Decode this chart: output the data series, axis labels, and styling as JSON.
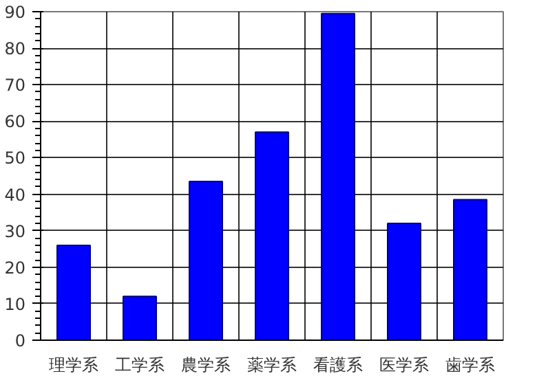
{
  "chart_data": {
    "type": "bar",
    "categories": [
      "理学系",
      "工学系",
      "農学系",
      "薬学系",
      "看護系",
      "医学系",
      "歯学系"
    ],
    "values": [
      26,
      12,
      43.5,
      57,
      89.5,
      32,
      38.5
    ],
    "color": "#0000ff",
    "ylim": [
      0,
      90
    ],
    "yticks": [
      0,
      10,
      20,
      30,
      40,
      50,
      60,
      70,
      80,
      90
    ],
    "grid": true
  }
}
